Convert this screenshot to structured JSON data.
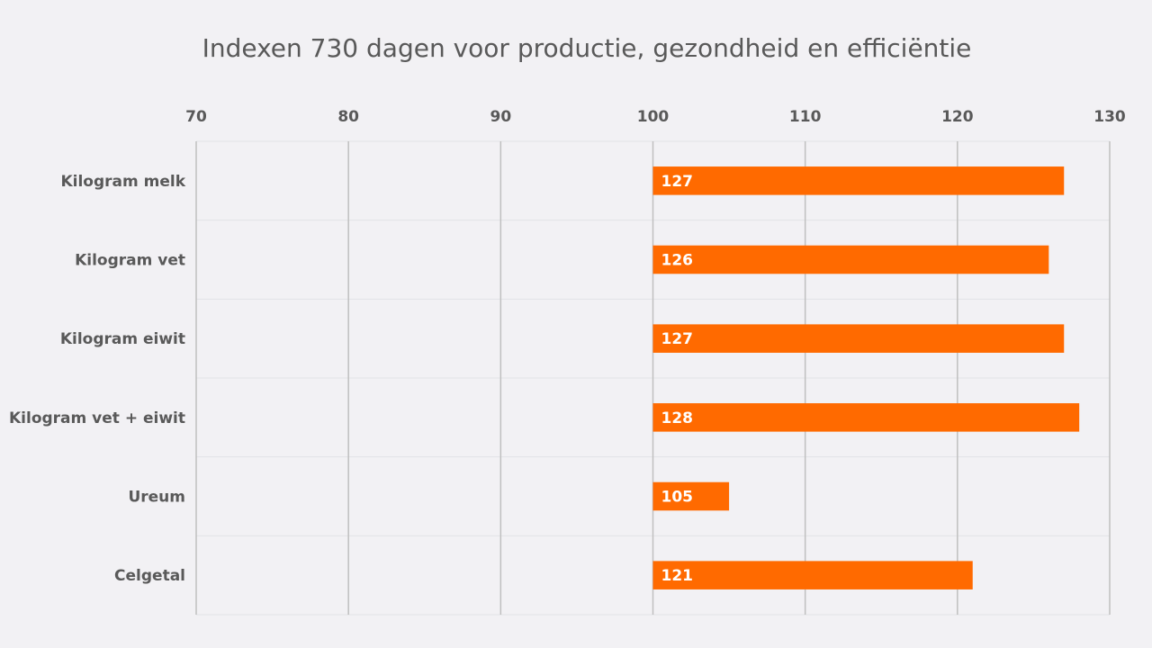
{
  "chart_data": {
    "type": "bar",
    "orientation": "horizontal",
    "title": "Indexen 730 dagen voor productie, gezondheid en efficiëntie",
    "categories": [
      "Kilogram melk",
      "Kilogram vet",
      "Kilogram eiwit",
      "Kilogram vet + eiwit",
      "Ureum",
      "Celgetal"
    ],
    "values": [
      127,
      126,
      127,
      128,
      105,
      121
    ],
    "baseline": 100,
    "xlim": [
      70,
      130
    ],
    "x_ticks": [
      70,
      80,
      90,
      100,
      110,
      120,
      130
    ],
    "x_axis_position": "top",
    "grid": true,
    "legend": "none",
    "data_labels": "inside-base",
    "colors": {
      "bar": "#ff6a00",
      "grid_major": "#bfbfbf",
      "grid_minor": "#e2e2e6",
      "text": "#595959",
      "background": "#f2f1f4"
    }
  }
}
